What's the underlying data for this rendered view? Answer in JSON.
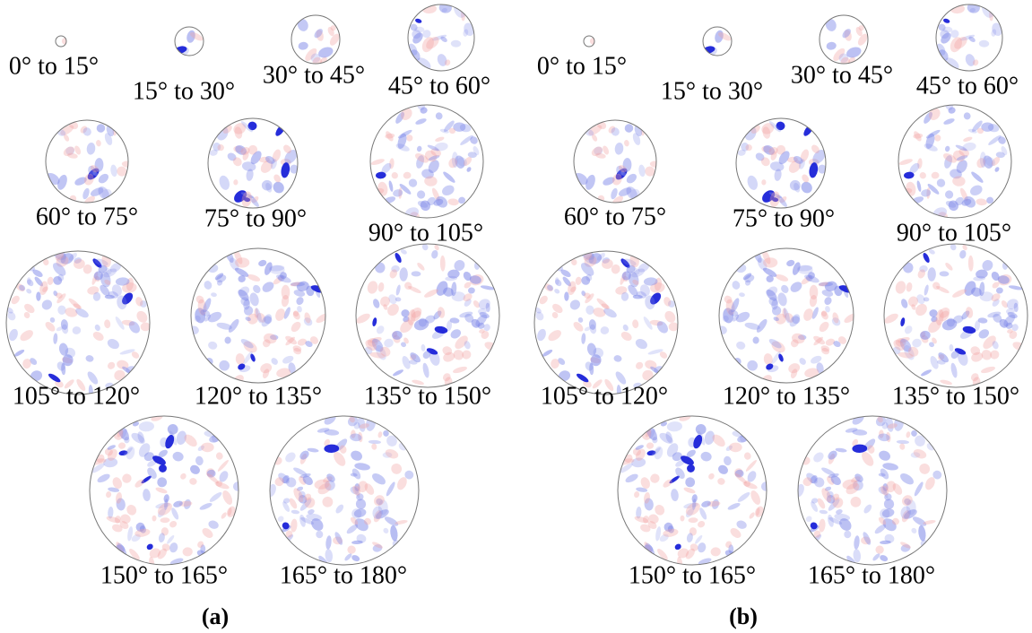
{
  "panels": [
    {
      "label": "(a)",
      "maps": [
        "0° to 15°",
        "15° to 30°",
        "30° to 45°",
        "45° to 60°",
        "60° to 75°",
        "75° to 90°",
        "90° to 105°",
        "105° to 120°",
        "120° to 135°",
        "135° to 150°",
        "150° to 165°",
        "165° to 180°"
      ]
    },
    {
      "label": "(b)",
      "maps": [
        "0° to 15°",
        "15° to 30°",
        "30° to 45°",
        "45° to 60°",
        "60° to 75°",
        "75° to 90°",
        "90° to 105°",
        "105° to 120°",
        "120° to 135°",
        "135° to 150°",
        "150° to 165°",
        "165° to 180°"
      ]
    }
  ]
}
